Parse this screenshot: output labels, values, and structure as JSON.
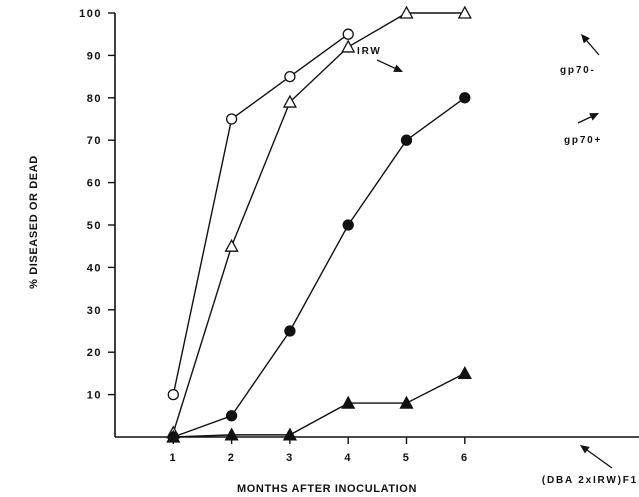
{
  "chart_data": {
    "type": "line",
    "xlabel": "MONTHS AFTER INOCULATION",
    "ylabel": "% DISEASED OR DEAD",
    "x_ticks": [
      "1",
      "2",
      "3",
      "4",
      "5",
      "6"
    ],
    "y_ticks": [
      "10",
      "20",
      "30",
      "40",
      "50",
      "60",
      "70",
      "80",
      "90",
      "100"
    ],
    "xlim": [
      0,
      6.5
    ],
    "ylim": [
      0,
      100
    ],
    "grid": false,
    "series": [
      {
        "name": "IRW",
        "marker": "open-circle",
        "x": [
          1,
          2,
          3,
          4
        ],
        "y": [
          10,
          75,
          85,
          95
        ]
      },
      {
        "name": "gp70-",
        "marker": "open-triangle",
        "x": [
          1,
          2,
          3,
          4,
          5,
          6
        ],
        "y": [
          1,
          45,
          79,
          92,
          100,
          100
        ]
      },
      {
        "name": "gp70+",
        "marker": "filled-circle",
        "x": [
          1,
          2,
          3,
          4,
          5,
          6
        ],
        "y": [
          0,
          5,
          25,
          50,
          70,
          80
        ]
      },
      {
        "name": "(DBA 2xIRW)F1",
        "marker": "filled-triangle",
        "x": [
          1,
          2,
          3,
          4,
          5,
          6
        ],
        "y": [
          0,
          0.5,
          0.5,
          8,
          8,
          15
        ]
      }
    ],
    "annotations": [
      {
        "text": "IRW",
        "series": "IRW"
      },
      {
        "text": "gp70-",
        "series": "gp70-"
      },
      {
        "text": "gp70+",
        "series": "gp70+"
      },
      {
        "text": "(DBA 2xIRW)F1",
        "series": "(DBA 2xIRW)F1"
      }
    ]
  }
}
